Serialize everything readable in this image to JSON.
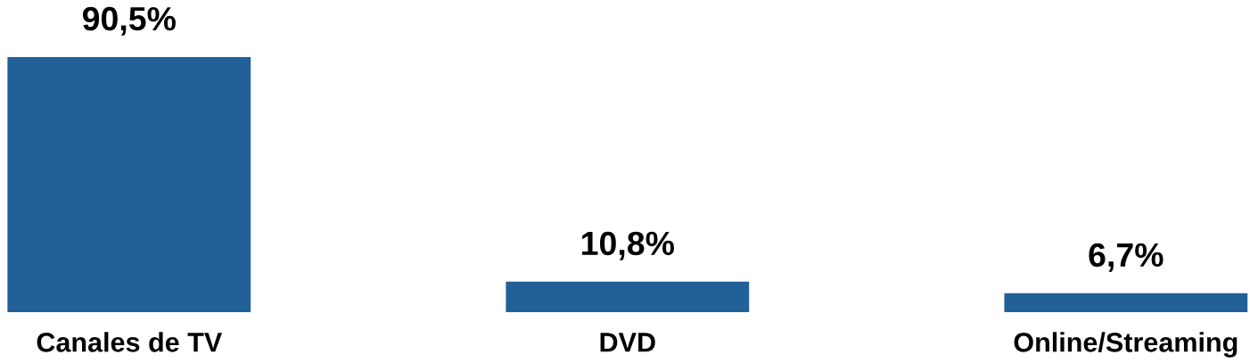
{
  "chart_data": {
    "type": "bar",
    "categories": [
      "Canales de TV",
      "DVD",
      "Online/Streaming"
    ],
    "values": [
      90.5,
      10.8,
      6.7
    ],
    "color": "#22609a",
    "value_labels": [
      "90,5%",
      "10,8%",
      "6,7%"
    ],
    "tick_labels": "x"
  }
}
